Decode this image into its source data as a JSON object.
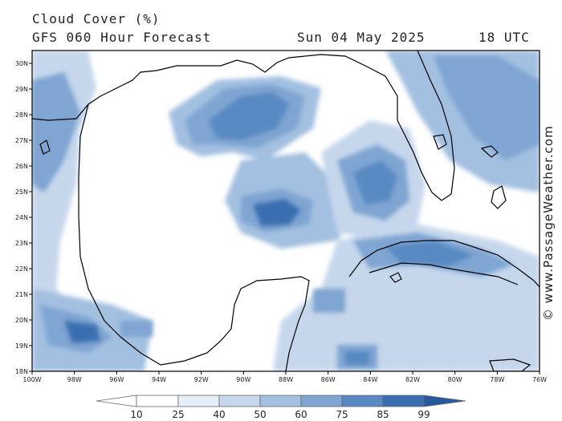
{
  "header": {
    "title": "Cloud Cover (%)",
    "model": "GFS 060 Hour Forecast",
    "date": "Sun 04 May 2025",
    "time": "18 UTC"
  },
  "map": {
    "lat_labels": [
      "30N",
      "29N",
      "28N",
      "27N",
      "26N",
      "25N",
      "24N",
      "23N",
      "22N",
      "21N",
      "20N",
      "19N",
      "18N"
    ],
    "lon_labels": [
      "100W",
      "98W",
      "96W",
      "94W",
      "92W",
      "90W",
      "88W",
      "86W",
      "84W",
      "82W",
      "80W",
      "78W",
      "76W"
    ],
    "lat_range": [
      18,
      30.5
    ],
    "lon_range": [
      -100,
      -76
    ],
    "shade_colors": [
      "#ffffff",
      "#e8eef7",
      "#c6d7ec",
      "#a3c0e1",
      "#7fa5d2",
      "#5889c2",
      "#3a6eb0",
      "#27599c"
    ]
  },
  "colorbar": {
    "labels": [
      "10",
      "25",
      "40",
      "50",
      "60",
      "75",
      "85",
      "99"
    ]
  },
  "credit": "© www.PassageWeather.com"
}
